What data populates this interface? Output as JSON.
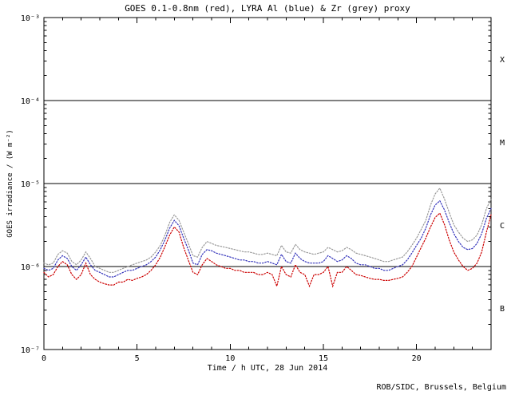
{
  "chart_data": {
    "type": "line",
    "title": "GOES 0.1-0.8nm (red), LYRA Al (blue) & Zr (grey) proxy",
    "xlabel": "Time / h UTC, 28 Jun 2014",
    "ylabel": "GOES irradiance / (W m⁻²)",
    "xlim": [
      0,
      24
    ],
    "x_major_ticks": [
      0,
      5,
      10,
      15,
      20
    ],
    "x_minor_step": 1,
    "y_log_range": [
      -7,
      -3
    ],
    "y_scale": "log",
    "grid": false,
    "legend": "in title",
    "y_ticks": [
      {
        "label": "10⁻³",
        "exp": -3
      },
      {
        "label": "10⁻⁴",
        "exp": -4
      },
      {
        "label": "10⁻⁵",
        "exp": -5
      },
      {
        "label": "10⁻⁶",
        "exp": -6
      },
      {
        "label": "10⁻⁷",
        "exp": -7
      }
    ],
    "flare_threshold_exps": [
      -4,
      -5,
      -6
    ],
    "flare_classes": [
      {
        "label": "X",
        "log_center": -3.5
      },
      {
        "label": "M",
        "log_center": -4.5
      },
      {
        "label": "C",
        "log_center": -5.5
      },
      {
        "label": "B",
        "log_center": -6.5
      }
    ],
    "unit_scale": 1e-06,
    "x": [
      0,
      0.25,
      0.5,
      0.75,
      1,
      1.25,
      1.5,
      1.75,
      2,
      2.25,
      2.5,
      2.75,
      3,
      3.25,
      3.5,
      3.75,
      4,
      4.25,
      4.5,
      4.75,
      5,
      5.25,
      5.5,
      5.75,
      6,
      6.25,
      6.5,
      6.75,
      7,
      7.25,
      7.5,
      7.75,
      8,
      8.25,
      8.5,
      8.75,
      9,
      9.25,
      9.5,
      9.75,
      10,
      10.25,
      10.5,
      10.75,
      11,
      11.25,
      11.5,
      11.75,
      12,
      12.25,
      12.5,
      12.75,
      13,
      13.25,
      13.5,
      13.75,
      14,
      14.25,
      14.5,
      14.75,
      15,
      15.25,
      15.5,
      15.75,
      16,
      16.25,
      16.5,
      16.75,
      17,
      17.25,
      17.5,
      17.75,
      18,
      18.25,
      18.5,
      18.75,
      19,
      19.25,
      19.5,
      19.75,
      20,
      20.25,
      20.5,
      20.75,
      21,
      21.25,
      21.5,
      21.75,
      22,
      22.25,
      22.5,
      22.75,
      23,
      23.25,
      23.5,
      23.75,
      24
    ],
    "series": [
      {
        "id": "lyra-zr",
        "name": "LYRA Zr proxy",
        "color": "#999999",
        "values": [
          1.1,
          1.05,
          1.1,
          1.4,
          1.55,
          1.45,
          1.15,
          1.05,
          1.2,
          1.5,
          1.25,
          1.0,
          0.95,
          0.9,
          0.85,
          0.85,
          0.9,
          0.95,
          1.0,
          1.05,
          1.1,
          1.15,
          1.2,
          1.3,
          1.5,
          1.8,
          2.4,
          3.4,
          4.2,
          3.6,
          2.6,
          1.9,
          1.35,
          1.3,
          1.7,
          2.0,
          1.9,
          1.8,
          1.75,
          1.7,
          1.65,
          1.6,
          1.55,
          1.5,
          1.5,
          1.45,
          1.4,
          1.4,
          1.45,
          1.4,
          1.35,
          1.8,
          1.5,
          1.45,
          1.85,
          1.6,
          1.5,
          1.45,
          1.4,
          1.45,
          1.5,
          1.7,
          1.6,
          1.5,
          1.55,
          1.7,
          1.6,
          1.45,
          1.4,
          1.35,
          1.3,
          1.25,
          1.2,
          1.15,
          1.15,
          1.2,
          1.25,
          1.3,
          1.5,
          1.8,
          2.2,
          2.8,
          3.6,
          5.5,
          7.5,
          8.8,
          6.5,
          4.5,
          3.2,
          2.6,
          2.2,
          2.0,
          2.1,
          2.4,
          3.2,
          5.0,
          6.5
        ]
      },
      {
        "id": "lyra-al",
        "name": "LYRA Al proxy",
        "color": "#3333bb",
        "values": [
          0.95,
          0.9,
          0.95,
          1.2,
          1.35,
          1.25,
          1.0,
          0.9,
          1.05,
          1.3,
          1.05,
          0.9,
          0.85,
          0.8,
          0.75,
          0.75,
          0.8,
          0.85,
          0.9,
          0.9,
          0.95,
          1.0,
          1.05,
          1.15,
          1.3,
          1.6,
          2.1,
          2.9,
          3.6,
          3.1,
          2.2,
          1.6,
          1.1,
          1.05,
          1.4,
          1.6,
          1.55,
          1.45,
          1.4,
          1.35,
          1.3,
          1.25,
          1.2,
          1.2,
          1.15,
          1.15,
          1.1,
          1.1,
          1.15,
          1.1,
          1.05,
          1.4,
          1.15,
          1.1,
          1.45,
          1.25,
          1.15,
          1.1,
          1.1,
          1.1,
          1.15,
          1.35,
          1.25,
          1.15,
          1.2,
          1.35,
          1.25,
          1.1,
          1.05,
          1.05,
          1.0,
          0.95,
          0.95,
          0.9,
          0.9,
          0.95,
          1.0,
          1.05,
          1.2,
          1.45,
          1.8,
          2.2,
          2.9,
          4.2,
          5.5,
          6.2,
          4.8,
          3.4,
          2.5,
          2.0,
          1.7,
          1.6,
          1.65,
          1.9,
          2.5,
          3.8,
          5.0
        ]
      },
      {
        "id": "goes",
        "name": "GOES 0.1-0.8nm",
        "color": "#cc0000",
        "values": [
          0.85,
          0.75,
          0.8,
          1.0,
          1.15,
          1.05,
          0.8,
          0.7,
          0.8,
          1.1,
          0.8,
          0.7,
          0.65,
          0.62,
          0.6,
          0.6,
          0.65,
          0.65,
          0.7,
          0.68,
          0.72,
          0.75,
          0.8,
          0.9,
          1.05,
          1.3,
          1.75,
          2.4,
          3.0,
          2.6,
          1.7,
          1.2,
          0.85,
          0.8,
          1.05,
          1.25,
          1.15,
          1.05,
          1.0,
          0.95,
          0.95,
          0.9,
          0.9,
          0.85,
          0.85,
          0.85,
          0.8,
          0.8,
          0.85,
          0.8,
          0.58,
          1.0,
          0.8,
          0.75,
          1.05,
          0.85,
          0.8,
          0.58,
          0.8,
          0.8,
          0.85,
          1.0,
          0.58,
          0.85,
          0.85,
          1.0,
          0.9,
          0.8,
          0.78,
          0.75,
          0.72,
          0.7,
          0.7,
          0.68,
          0.68,
          0.7,
          0.72,
          0.75,
          0.85,
          1.0,
          1.3,
          1.7,
          2.2,
          3.0,
          3.9,
          4.4,
          3.2,
          2.1,
          1.5,
          1.2,
          1.0,
          0.9,
          0.95,
          1.1,
          1.5,
          2.6,
          4.2
        ]
      }
    ]
  },
  "footer": {
    "credit": "ROB/SIDC, Brussels, Belgium"
  },
  "colors": {
    "axis": "#000000",
    "background": "#ffffff"
  }
}
